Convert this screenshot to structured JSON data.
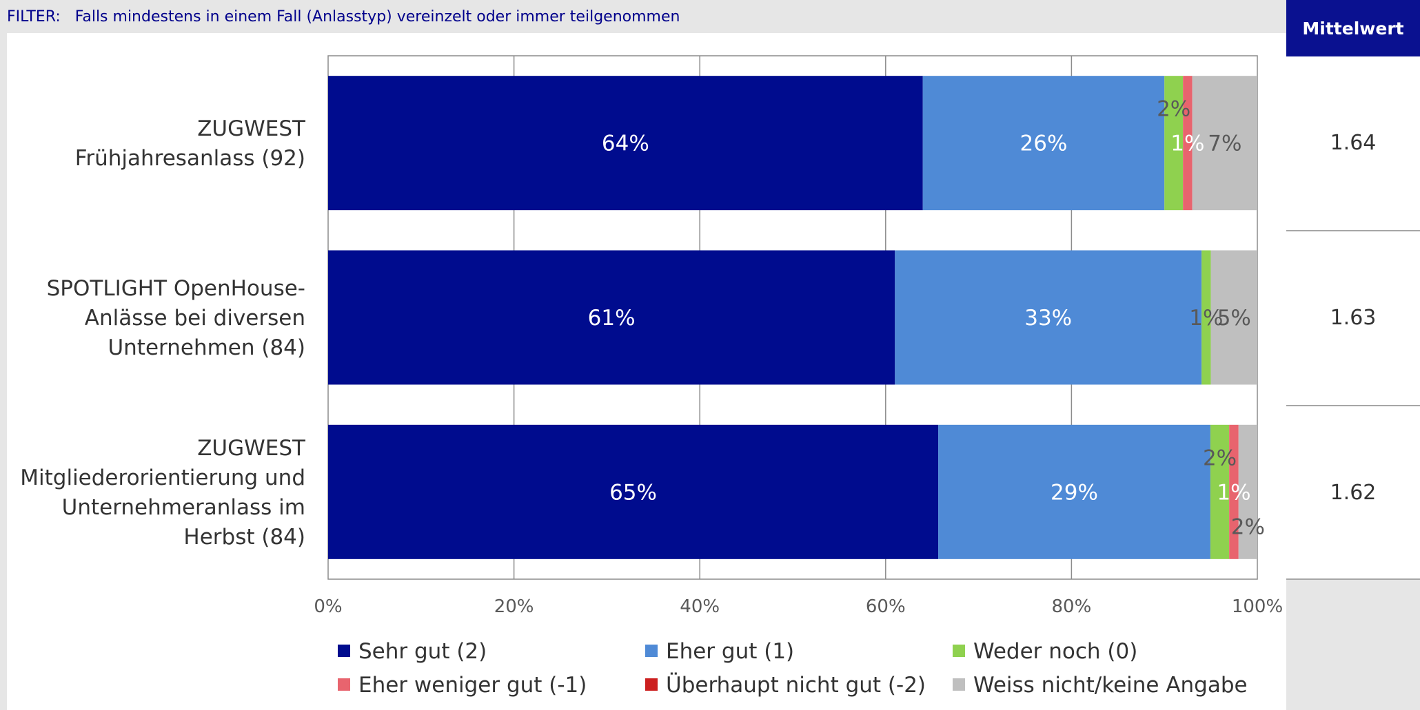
{
  "filter": {
    "label": "FILTER:",
    "text": "Falls mindestens in einem Fall (Anlasstyp) vereinzelt oder immer teilgenommen"
  },
  "mean_column": {
    "header": "Mittelwert",
    "values": [
      "1.64",
      "1.63",
      "1.62"
    ]
  },
  "chart_data": {
    "type": "bar",
    "orientation": "horizontal",
    "stacked": "percent",
    "categories": [
      "ZUGWEST Frühjahresanlass (92)",
      "SPOTLIGHT OpenHouse-Anlässe bei diversen Unternehmen (84)",
      "ZUGWEST Mitgliederorientierung und Unternehmeranlass im Herbst (84)"
    ],
    "category_lines": [
      [
        "ZUGWEST",
        "Frühjahresanlass (92)"
      ],
      [
        "SPOTLIGHT OpenHouse-",
        "Anlässe bei diversen",
        "Unternehmen (84)"
      ],
      [
        "ZUGWEST",
        "Mitgliederorientierung und",
        "Unternehmeranlass im",
        "Herbst (84)"
      ]
    ],
    "series": [
      {
        "name": "Sehr gut (2)",
        "color": "#000c8e",
        "label_color": "#ffffff",
        "values": [
          64,
          61,
          65
        ],
        "labels": [
          "64%",
          "61%",
          "65%"
        ]
      },
      {
        "name": "Eher gut (1)",
        "color": "#4f8ad6",
        "label_color": "#ffffff",
        "values": [
          26,
          33,
          29
        ],
        "labels": [
          "26%",
          "33%",
          "29%"
        ]
      },
      {
        "name": "Weder noch (0)",
        "color": "#8fd14f",
        "label_color": "#595959",
        "values": [
          2,
          1,
          2
        ],
        "labels": [
          "2%",
          "1%",
          "2%"
        ]
      },
      {
        "name": "Eher weniger gut (-1)",
        "color": "#e8646e",
        "label_color": "#ffffff",
        "values": [
          1,
          0,
          1
        ],
        "labels": [
          "1%",
          "",
          "1%"
        ]
      },
      {
        "name": "Überhaupt nicht gut (-2)",
        "color": "#cc1f1f",
        "label_color": "#ffffff",
        "values": [
          0,
          0,
          0
        ],
        "labels": [
          "",
          "",
          ""
        ]
      },
      {
        "name": "Weiss nicht/keine Angabe",
        "color": "#bfbfbf",
        "label_color": "#595959",
        "values": [
          7,
          5,
          2
        ],
        "labels": [
          "7%",
          "5%",
          "2%"
        ]
      }
    ],
    "x_ticks": [
      "0%",
      "20%",
      "40%",
      "60%",
      "80%",
      "100%"
    ],
    "xlim": [
      0,
      100
    ],
    "grid": true,
    "legend_position": "bottom"
  }
}
